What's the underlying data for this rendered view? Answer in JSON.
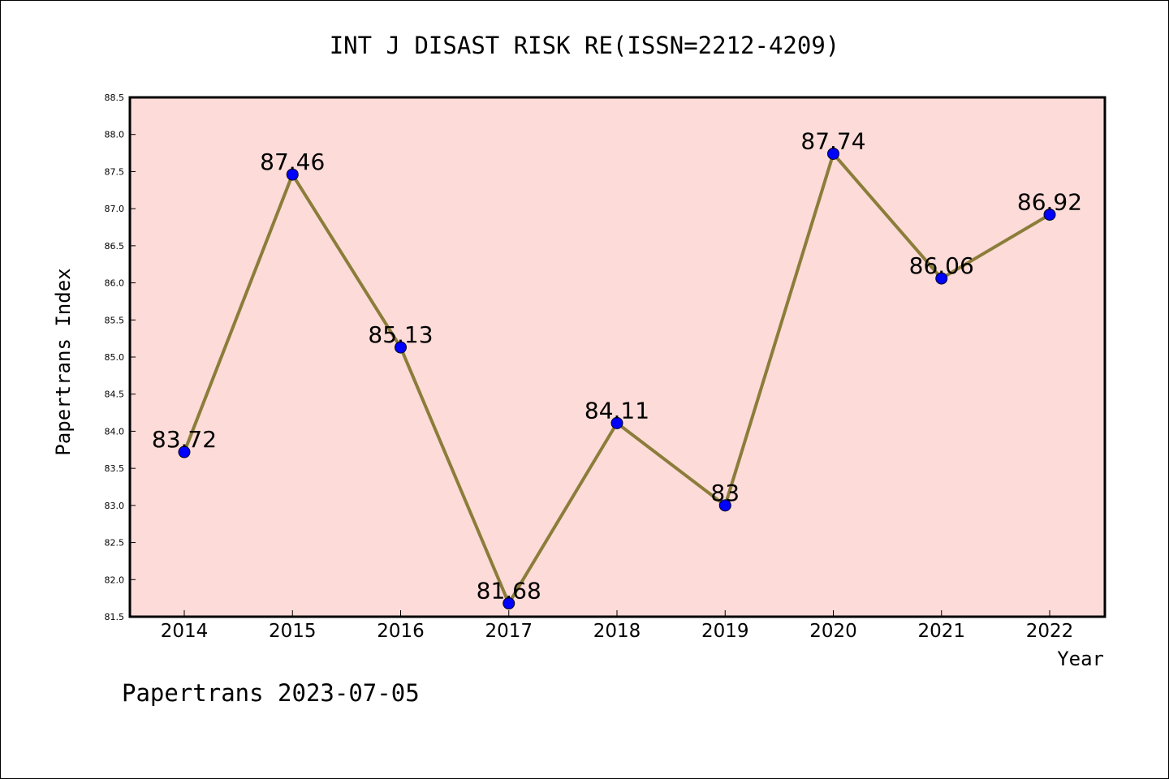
{
  "chart_data": {
    "type": "line",
    "title": "INT J DISAST RISK RE(ISSN=2212-4209)",
    "xlabel": "Year",
    "ylabel": "Papertrans Index",
    "footer": "Papertrans 2023-07-05",
    "categories": [
      "2014",
      "2015",
      "2016",
      "2017",
      "2018",
      "2019",
      "2020",
      "2021",
      "2022"
    ],
    "values": [
      83.72,
      87.46,
      85.13,
      81.68,
      84.11,
      83,
      87.74,
      86.06,
      86.92
    ],
    "data_labels": [
      "83.72",
      "87.46",
      "85.13",
      "81.68",
      "84.11",
      "83",
      "87.74",
      "86.06",
      "86.92"
    ],
    "ylim": [
      81.5,
      88.5
    ],
    "yticks": [
      "81.5",
      "82.0",
      "82.5",
      "83.0",
      "83.5",
      "84.0",
      "84.5",
      "85.0",
      "85.5",
      "86.0",
      "86.5",
      "87.0",
      "87.5",
      "88.0",
      "88.5"
    ],
    "grid": false,
    "colors": {
      "plot_background": "#fddbd8",
      "line": "#8b7d3a",
      "marker": "#0000ff"
    }
  }
}
